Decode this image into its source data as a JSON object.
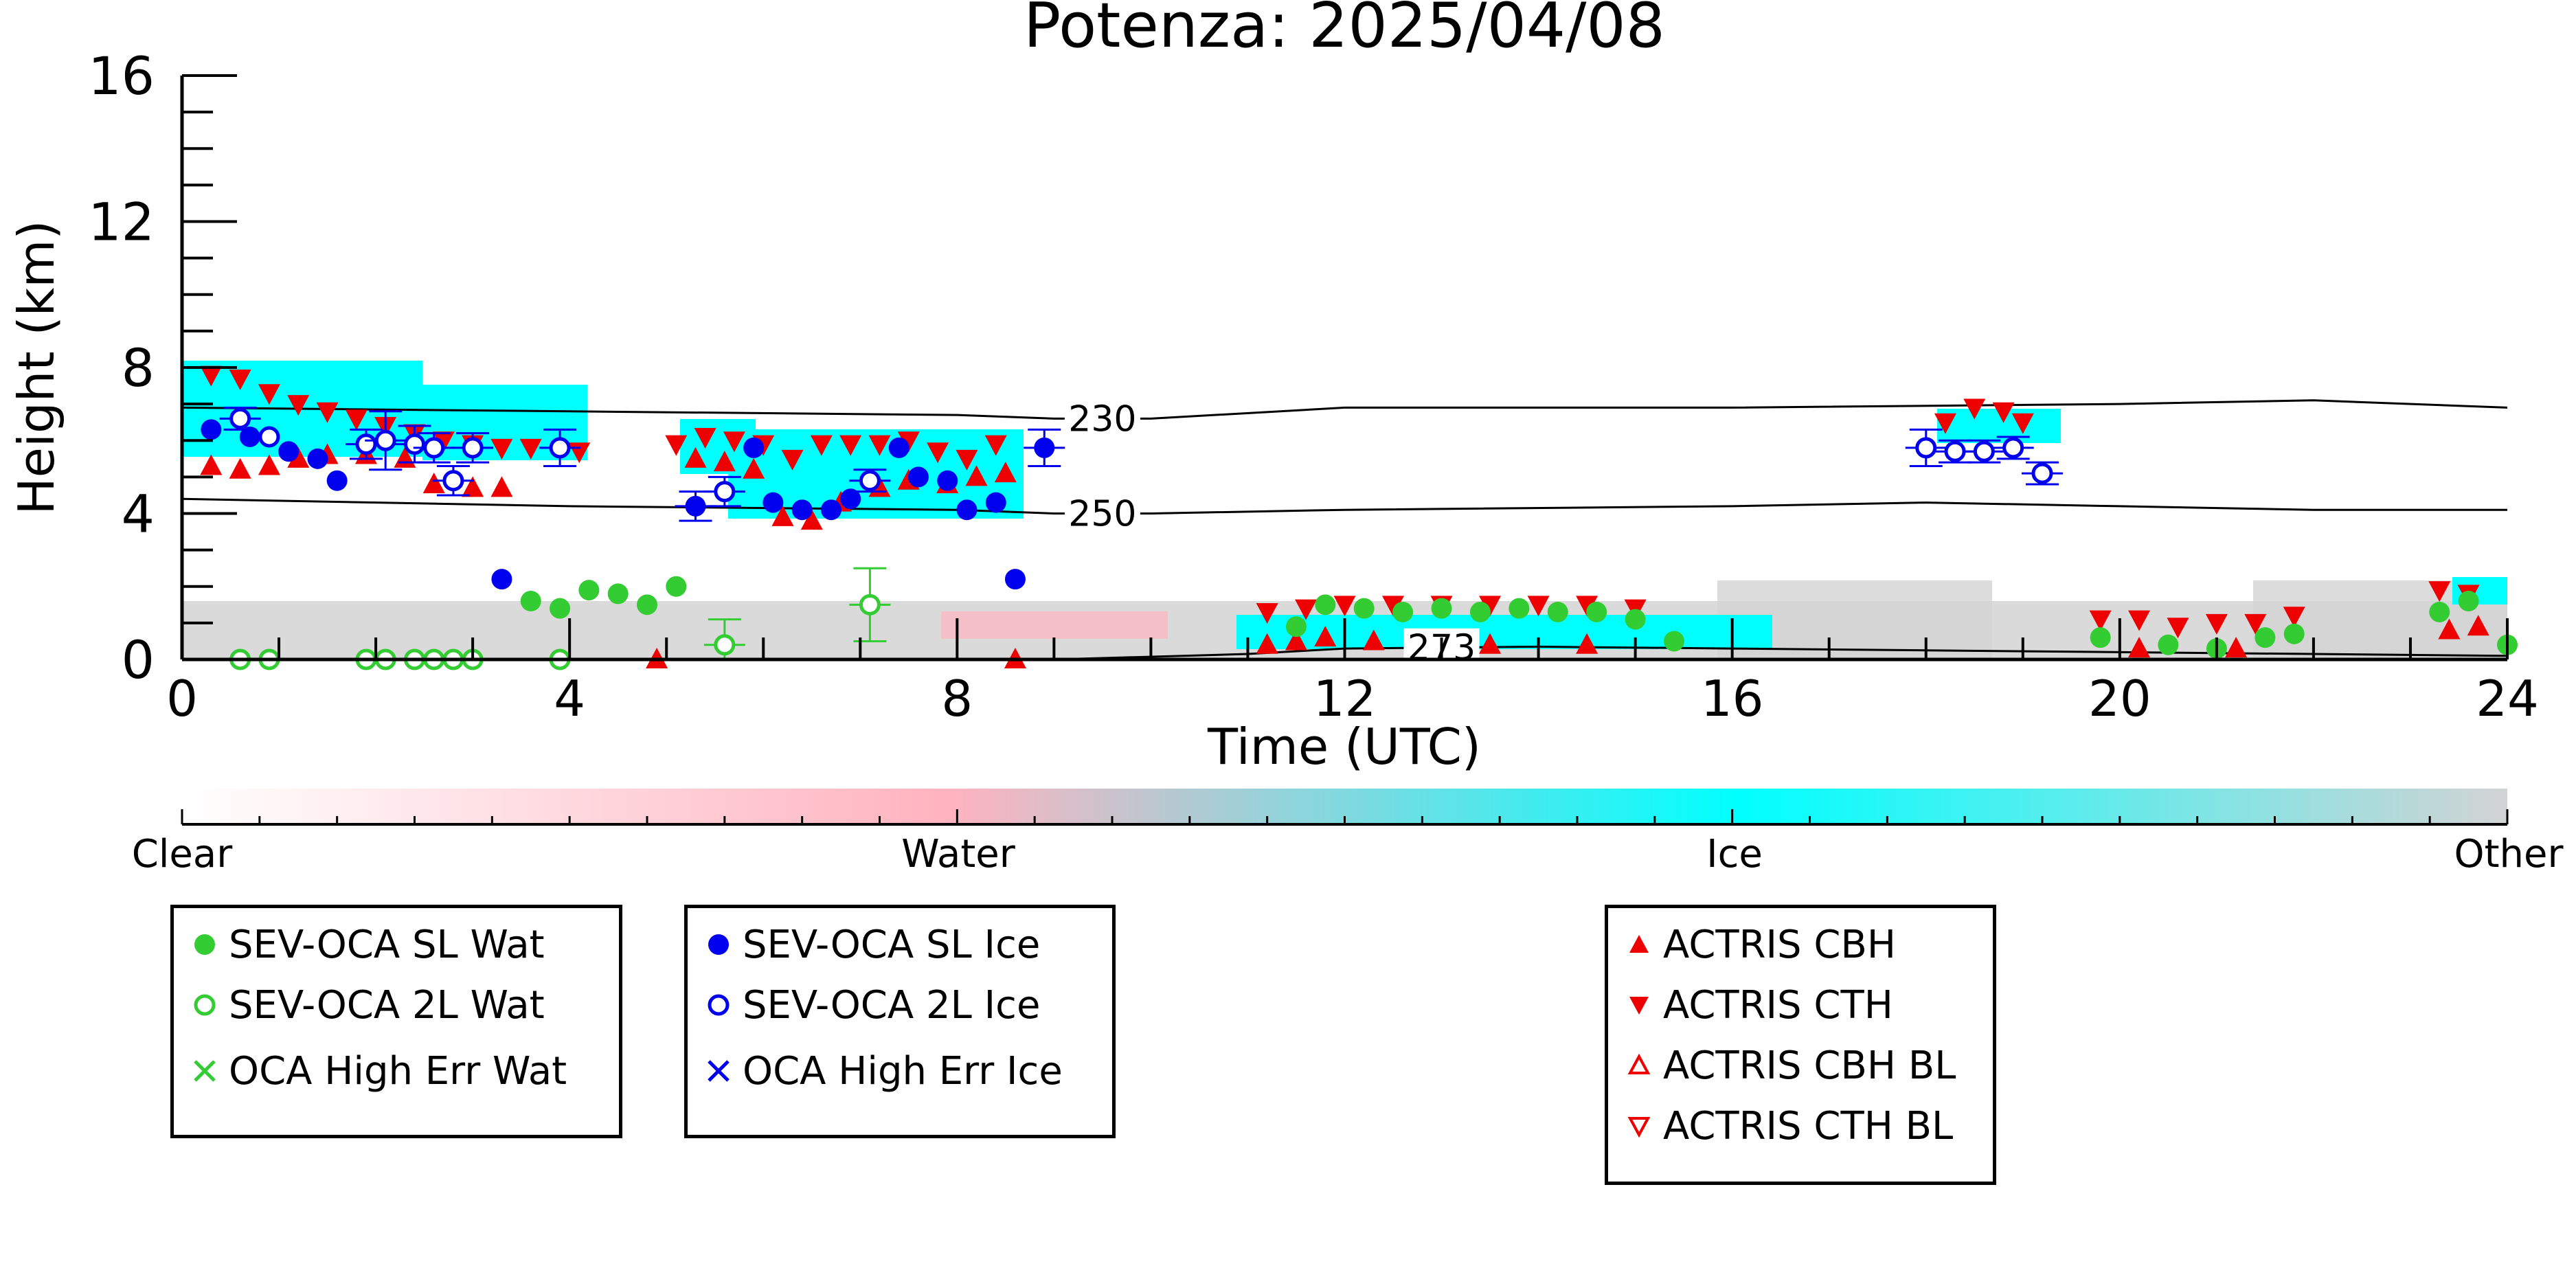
{
  "chart_data": {
    "type": "scatter",
    "title": "Potenza: 2025/04/08",
    "xlabel": "Time (UTC)",
    "ylabel": "Height (km)",
    "xlim": [
      0,
      24
    ],
    "ylim": [
      0,
      16
    ],
    "xticks": [
      0,
      4,
      8,
      12,
      16,
      20,
      24
    ],
    "yticks": [
      0,
      4,
      8,
      12,
      16
    ],
    "colorbar": {
      "labels": [
        "Clear",
        "Water",
        "Ice",
        "Other"
      ],
      "colors": [
        "#ffffff",
        "#ffb3bf",
        "#00ffff",
        "#d3d3d3"
      ]
    },
    "contours": [
      {
        "label": "230",
        "points": [
          [
            0,
            6.9
          ],
          [
            4,
            6.8
          ],
          [
            8,
            6.7
          ],
          [
            9,
            6.6
          ],
          [
            10,
            6.6
          ],
          [
            12,
            6.9
          ],
          [
            16,
            6.9
          ],
          [
            20,
            7.0
          ],
          [
            22,
            7.1
          ],
          [
            24,
            6.9
          ]
        ]
      },
      {
        "label": "250",
        "points": [
          [
            0,
            4.4
          ],
          [
            4,
            4.2
          ],
          [
            8,
            4.1
          ],
          [
            9,
            4.0
          ],
          [
            10,
            4.0
          ],
          [
            12,
            4.1
          ],
          [
            16,
            4.2
          ],
          [
            18,
            4.3
          ],
          [
            20,
            4.2
          ],
          [
            22,
            4.1
          ],
          [
            24,
            4.1
          ]
        ]
      },
      {
        "label": "273",
        "points": [
          [
            9,
            0.0
          ],
          [
            11,
            0.15
          ],
          [
            12,
            0.3
          ],
          [
            14,
            0.35
          ],
          [
            16,
            0.3
          ],
          [
            18,
            0.25
          ],
          [
            20,
            0.2
          ],
          [
            24,
            0.1
          ]
        ]
      }
    ],
    "series": [
      {
        "name": "SEV-OCA SL Wat",
        "marker": "filled-circle",
        "color": "#33cc33",
        "points": [
          [
            3.6,
            1.6
          ],
          [
            3.9,
            1.4
          ],
          [
            4.2,
            1.9
          ],
          [
            4.5,
            1.8
          ],
          [
            4.8,
            1.5
          ],
          [
            5.1,
            2.0
          ],
          [
            11.5,
            0.9
          ],
          [
            11.8,
            1.5
          ],
          [
            12.2,
            1.4
          ],
          [
            12.6,
            1.3
          ],
          [
            13.0,
            1.4
          ],
          [
            13.4,
            1.3
          ],
          [
            13.8,
            1.4
          ],
          [
            14.2,
            1.3
          ],
          [
            14.6,
            1.3
          ],
          [
            15.0,
            1.1
          ],
          [
            15.4,
            0.5
          ],
          [
            19.8,
            0.6
          ],
          [
            20.5,
            0.4
          ],
          [
            21.0,
            0.3
          ],
          [
            21.5,
            0.6
          ],
          [
            21.8,
            0.7
          ],
          [
            23.3,
            1.3
          ],
          [
            23.6,
            1.6
          ],
          [
            24.0,
            0.4
          ]
        ]
      },
      {
        "name": "SEV-OCA 2L Wat",
        "marker": "open-circle",
        "color": "#33cc33",
        "points": [
          [
            0.6,
            0.0
          ],
          [
            0.9,
            0.0
          ],
          [
            1.9,
            0.0
          ],
          [
            2.1,
            0.0
          ],
          [
            2.4,
            0.0
          ],
          [
            2.6,
            0.0
          ],
          [
            2.8,
            0.0
          ],
          [
            3.0,
            0.0
          ],
          [
            3.9,
            0.0
          ],
          [
            5.6,
            0.4
          ],
          [
            7.1,
            1.5
          ]
        ],
        "errors": [
          0,
          0,
          0,
          0,
          0,
          0,
          0,
          0,
          0,
          0.7,
          1.0
        ]
      },
      {
        "name": "OCA High Err Wat",
        "marker": "x",
        "color": "#33cc33",
        "points": []
      },
      {
        "name": "SEV-OCA SL Ice",
        "marker": "filled-circle",
        "color": "#0000ee",
        "points": [
          [
            0.3,
            6.3
          ],
          [
            0.7,
            6.1
          ],
          [
            1.1,
            5.7
          ],
          [
            1.4,
            5.5
          ],
          [
            1.6,
            4.9
          ],
          [
            3.3,
            2.2
          ],
          [
            5.3,
            4.2
          ],
          [
            5.9,
            5.8
          ],
          [
            6.1,
            4.3
          ],
          [
            6.4,
            4.1
          ],
          [
            6.7,
            4.1
          ],
          [
            6.9,
            4.4
          ],
          [
            7.4,
            5.8
          ],
          [
            7.6,
            5.0
          ],
          [
            7.9,
            4.9
          ],
          [
            8.1,
            4.1
          ],
          [
            8.4,
            4.3
          ],
          [
            8.6,
            2.2
          ],
          [
            8.9,
            5.8
          ]
        ],
        "errors": [
          0,
          0,
          0,
          0,
          0,
          0,
          0.4,
          0,
          0,
          0,
          0,
          0,
          0,
          0,
          0,
          0,
          0,
          0,
          0.5
        ]
      },
      {
        "name": "SEV-OCA 2L Ice",
        "marker": "open-circle",
        "color": "#0000ee",
        "points": [
          [
            0.6,
            6.6
          ],
          [
            0.9,
            6.1
          ],
          [
            1.9,
            5.9
          ],
          [
            2.1,
            6.0
          ],
          [
            2.4,
            5.9
          ],
          [
            2.6,
            5.8
          ],
          [
            2.8,
            4.9
          ],
          [
            3.0,
            5.8
          ],
          [
            3.9,
            5.8
          ],
          [
            5.6,
            4.6
          ],
          [
            7.1,
            4.9
          ],
          [
            18.0,
            5.8
          ],
          [
            18.3,
            5.7
          ],
          [
            18.6,
            5.7
          ],
          [
            18.9,
            5.8
          ],
          [
            19.2,
            5.1
          ]
        ],
        "errors": [
          0.3,
          0,
          0.4,
          0.8,
          0.5,
          0.4,
          0.4,
          0.4,
          0.5,
          0.4,
          0.3,
          0.5,
          0.3,
          0.3,
          0.3,
          0.3
        ]
      },
      {
        "name": "OCA High Err Ice",
        "marker": "x",
        "color": "#0000ee",
        "points": []
      },
      {
        "name": "ACTRIS CBH",
        "marker": "filled-triangle-up",
        "color": "#ee0000",
        "points": [
          [
            0.3,
            5.3
          ],
          [
            0.6,
            5.2
          ],
          [
            0.9,
            5.3
          ],
          [
            1.2,
            5.5
          ],
          [
            1.5,
            5.6
          ],
          [
            1.9,
            5.6
          ],
          [
            2.3,
            5.5
          ],
          [
            2.6,
            4.8
          ],
          [
            3.0,
            4.7
          ],
          [
            3.3,
            4.7
          ],
          [
            5.3,
            5.5
          ],
          [
            5.6,
            5.4
          ],
          [
            5.9,
            5.2
          ],
          [
            6.2,
            3.9
          ],
          [
            6.5,
            3.8
          ],
          [
            6.8,
            4.3
          ],
          [
            7.2,
            4.7
          ],
          [
            7.5,
            4.9
          ],
          [
            7.9,
            4.8
          ],
          [
            8.2,
            5.0
          ],
          [
            8.5,
            5.1
          ],
          [
            4.9,
            0.0
          ],
          [
            8.6,
            0.0
          ],
          [
            11.2,
            0.4
          ],
          [
            11.5,
            0.5
          ],
          [
            11.8,
            0.6
          ],
          [
            12.3,
            0.5
          ],
          [
            13.5,
            0.4
          ],
          [
            14.5,
            0.4
          ],
          [
            20.2,
            0.3
          ],
          [
            21.2,
            0.3
          ],
          [
            23.4,
            0.8
          ],
          [
            23.7,
            0.9
          ]
        ]
      },
      {
        "name": "ACTRIS CTH",
        "marker": "filled-triangle-down",
        "color": "#ee0000",
        "points": [
          [
            0.3,
            7.8
          ],
          [
            0.6,
            7.7
          ],
          [
            0.9,
            7.3
          ],
          [
            1.2,
            7.0
          ],
          [
            1.5,
            6.8
          ],
          [
            1.8,
            6.6
          ],
          [
            2.1,
            6.4
          ],
          [
            2.4,
            6.2
          ],
          [
            2.7,
            6.0
          ],
          [
            3.0,
            5.9
          ],
          [
            3.3,
            5.8
          ],
          [
            3.6,
            5.8
          ],
          [
            4.1,
            5.7
          ],
          [
            5.1,
            5.9
          ],
          [
            5.4,
            6.1
          ],
          [
            5.7,
            6.0
          ],
          [
            6.0,
            5.9
          ],
          [
            6.3,
            5.5
          ],
          [
            6.6,
            5.9
          ],
          [
            6.9,
            5.9
          ],
          [
            7.2,
            5.9
          ],
          [
            7.5,
            6.0
          ],
          [
            7.8,
            5.7
          ],
          [
            8.1,
            5.5
          ],
          [
            8.4,
            5.9
          ],
          [
            11.2,
            1.3
          ],
          [
            11.6,
            1.4
          ],
          [
            12.0,
            1.5
          ],
          [
            12.5,
            1.5
          ],
          [
            13.0,
            1.5
          ],
          [
            13.5,
            1.5
          ],
          [
            14.0,
            1.5
          ],
          [
            14.5,
            1.5
          ],
          [
            15.0,
            1.4
          ],
          [
            18.2,
            6.5
          ],
          [
            18.5,
            6.9
          ],
          [
            18.8,
            6.8
          ],
          [
            19.0,
            6.5
          ],
          [
            19.8,
            1.1
          ],
          [
            20.2,
            1.1
          ],
          [
            20.6,
            0.9
          ],
          [
            21.0,
            1.0
          ],
          [
            21.4,
            1.0
          ],
          [
            21.8,
            1.2
          ],
          [
            23.3,
            1.9
          ],
          [
            23.6,
            1.8
          ]
        ]
      },
      {
        "name": "ACTRIS CBH BL",
        "marker": "open-triangle-up",
        "color": "#ee0000",
        "points": []
      },
      {
        "name": "ACTRIS CTH BL",
        "marker": "open-triangle-down",
        "color": "#ee0000",
        "points": []
      }
    ],
    "legend_groups": [
      [
        "SEV-OCA SL Wat",
        "SEV-OCA 2L Wat",
        "OCA High Err Wat"
      ],
      [
        "SEV-OCA SL Ice",
        "SEV-OCA 2L Ice",
        "OCA High Err Ice"
      ],
      [
        "ACTRIS CBH",
        "ACTRIS CTH",
        "ACTRIS CBH BL",
        "ACTRIS CTH BL"
      ]
    ]
  }
}
